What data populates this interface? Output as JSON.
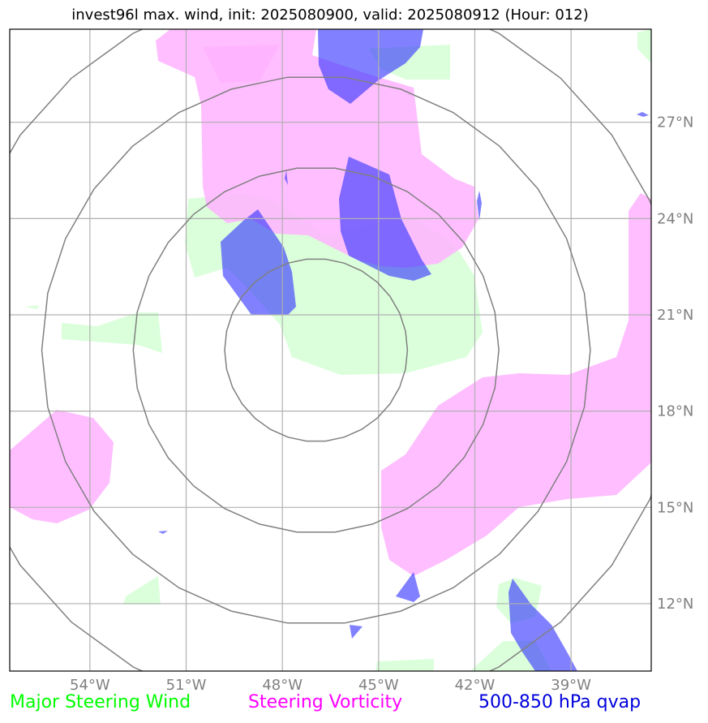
{
  "title": "invest96l max. wind, init: 2025080900, valid: 2025080912 (Hour: 012)",
  "map": {
    "projection": "lat-lon",
    "lon_range": [
      -56.5,
      -36.5
    ],
    "lat_range": [
      9.9,
      29.9
    ],
    "gridlines": true,
    "lon_ticks": [
      {
        "value": -54,
        "label": "54°W"
      },
      {
        "value": -51,
        "label": "51°W"
      },
      {
        "value": -48,
        "label": "48°W"
      },
      {
        "value": -45,
        "label": "45°W"
      },
      {
        "value": -42,
        "label": "42°W"
      },
      {
        "value": -39,
        "label": "39°W"
      }
    ],
    "lat_ticks": [
      {
        "value": 27,
        "label": "27°N"
      },
      {
        "value": 24,
        "label": "24°N"
      },
      {
        "value": 21,
        "label": "21°N"
      },
      {
        "value": 18,
        "label": "18°N"
      },
      {
        "value": 15,
        "label": "15°N"
      },
      {
        "value": 12,
        "label": "12°N"
      }
    ],
    "range_rings": {
      "center_lon": -46.95,
      "center_lat": 19.9,
      "count": 4
    },
    "colors": {
      "steering_wind": "#ccffcc",
      "vorticity": "#ffb3ff",
      "qvap": "#3333ff",
      "grid": "#b0b0b0",
      "rings": "#808080",
      "tick_labels": "#808080"
    }
  },
  "legend": [
    {
      "label": "Major Steering Wind",
      "color": "#00ff00"
    },
    {
      "label": "Steering Vorticity",
      "color": "#ff00ff"
    },
    {
      "label": "500-850 hPa qvap",
      "color": "#0000dd"
    }
  ]
}
